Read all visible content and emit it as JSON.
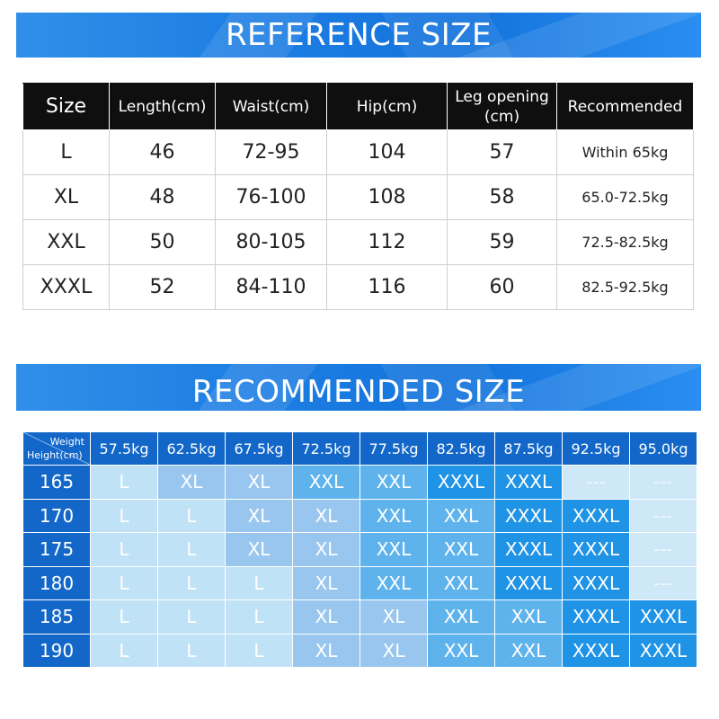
{
  "reference": {
    "title": "REFERENCE SIZE",
    "headers": [
      "Size",
      "Length(cm)",
      "Waist(cm)",
      "Hip(cm)",
      "Leg opening (cm)",
      "Recommended"
    ],
    "rows": [
      [
        "L",
        "46",
        "72-95",
        "104",
        "57",
        "Within 65kg"
      ],
      [
        "XL",
        "48",
        "76-100",
        "108",
        "58",
        "65.0-72.5kg"
      ],
      [
        "XXL",
        "50",
        "80-105",
        "112",
        "59",
        "72.5-82.5kg"
      ],
      [
        "XXXL",
        "52",
        "84-110",
        "116",
        "60",
        "82.5-92.5kg"
      ]
    ]
  },
  "recommended": {
    "title": "RECOMMENDED SIZE",
    "corner_weight": "Weight",
    "corner_height": "Height(cm)",
    "weights": [
      "57.5kg",
      "62.5kg",
      "67.5kg",
      "72.5kg",
      "77.5kg",
      "82.5kg",
      "87.5kg",
      "92.5kg",
      "95.0kg"
    ],
    "heights": [
      "165",
      "170",
      "175",
      "180",
      "185",
      "190"
    ],
    "grid": [
      [
        "L",
        "XL",
        "XL",
        "XXL",
        "XXL",
        "XXXL",
        "XXXL",
        "---",
        "---"
      ],
      [
        "L",
        "L",
        "XL",
        "XL",
        "XXL",
        "XXL",
        "XXXL",
        "XXXL",
        "---"
      ],
      [
        "L",
        "L",
        "XL",
        "XL",
        "XXL",
        "XXL",
        "XXXL",
        "XXXL",
        "---"
      ],
      [
        "L",
        "L",
        "L",
        "XL",
        "XXL",
        "XXL",
        "XXXL",
        "XXXL",
        "---"
      ],
      [
        "L",
        "L",
        "L",
        "XL",
        "XL",
        "XXL",
        "XXL",
        "XXXL",
        "XXXL"
      ],
      [
        "L",
        "L",
        "L",
        "XL",
        "XL",
        "XXL",
        "XXL",
        "XXXL",
        "XXXL"
      ]
    ],
    "colors": {
      "L": "#bfe2f6",
      "XL": "#98c6ee",
      "XXL": "#5fb3ec",
      "XXXL": "#1f93e6",
      "---": "#cfe8f8"
    }
  }
}
